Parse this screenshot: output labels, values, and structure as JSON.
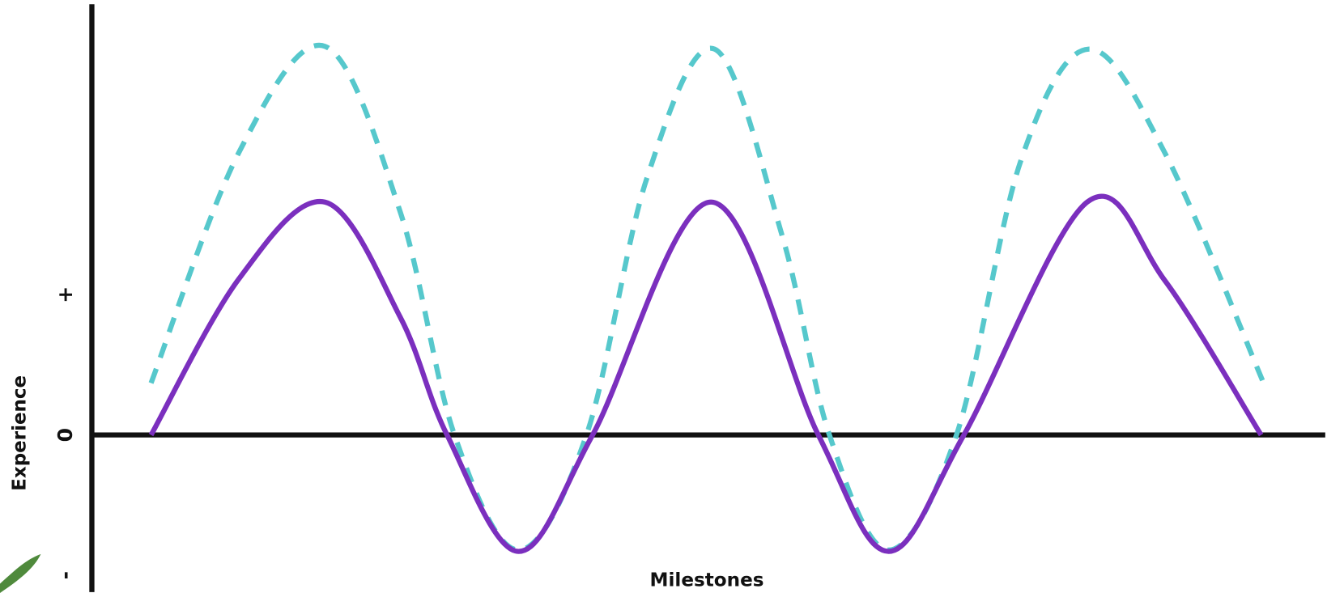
{
  "chart_data": {
    "type": "line",
    "x_label": "Milestones",
    "y_label": "Experience",
    "xlim": [
      0,
      100
    ],
    "ylim": [
      -1.12,
      3.07
    ],
    "yticks": [
      {
        "value": 1,
        "label": "+"
      },
      0,
      {
        "value": -1,
        "label": "-"
      }
    ],
    "series": [
      {
        "color": "#56c8cc",
        "dashed": true,
        "x": [
          4.8,
          11.9,
          18.9,
          25,
          29.4,
          34.6,
          40.1,
          45,
          50.5,
          56,
          59.8,
          64.6,
          70.1,
          75.3,
          80.8,
          87,
          95
        ],
        "values": [
          0.37,
          2.01,
          2.77,
          1.59,
          0,
          -0.82,
          0,
          1.83,
          2.75,
          1.41,
          0,
          -0.82,
          0,
          1.95,
          2.75,
          2.01,
          0.37
        ]
      },
      {
        "color": "#7b2fbe",
        "dashed": false,
        "x": [
          4.8,
          11.9,
          18.9,
          25,
          28.8,
          34.6,
          40.6,
          50.2,
          58.9,
          64.6,
          70.7,
          80.7,
          87,
          94.8
        ],
        "values": [
          0,
          1.11,
          1.66,
          0.84,
          0,
          -0.83,
          0,
          1.66,
          0,
          -0.83,
          0,
          1.66,
          1.1,
          0
        ]
      }
    ]
  }
}
